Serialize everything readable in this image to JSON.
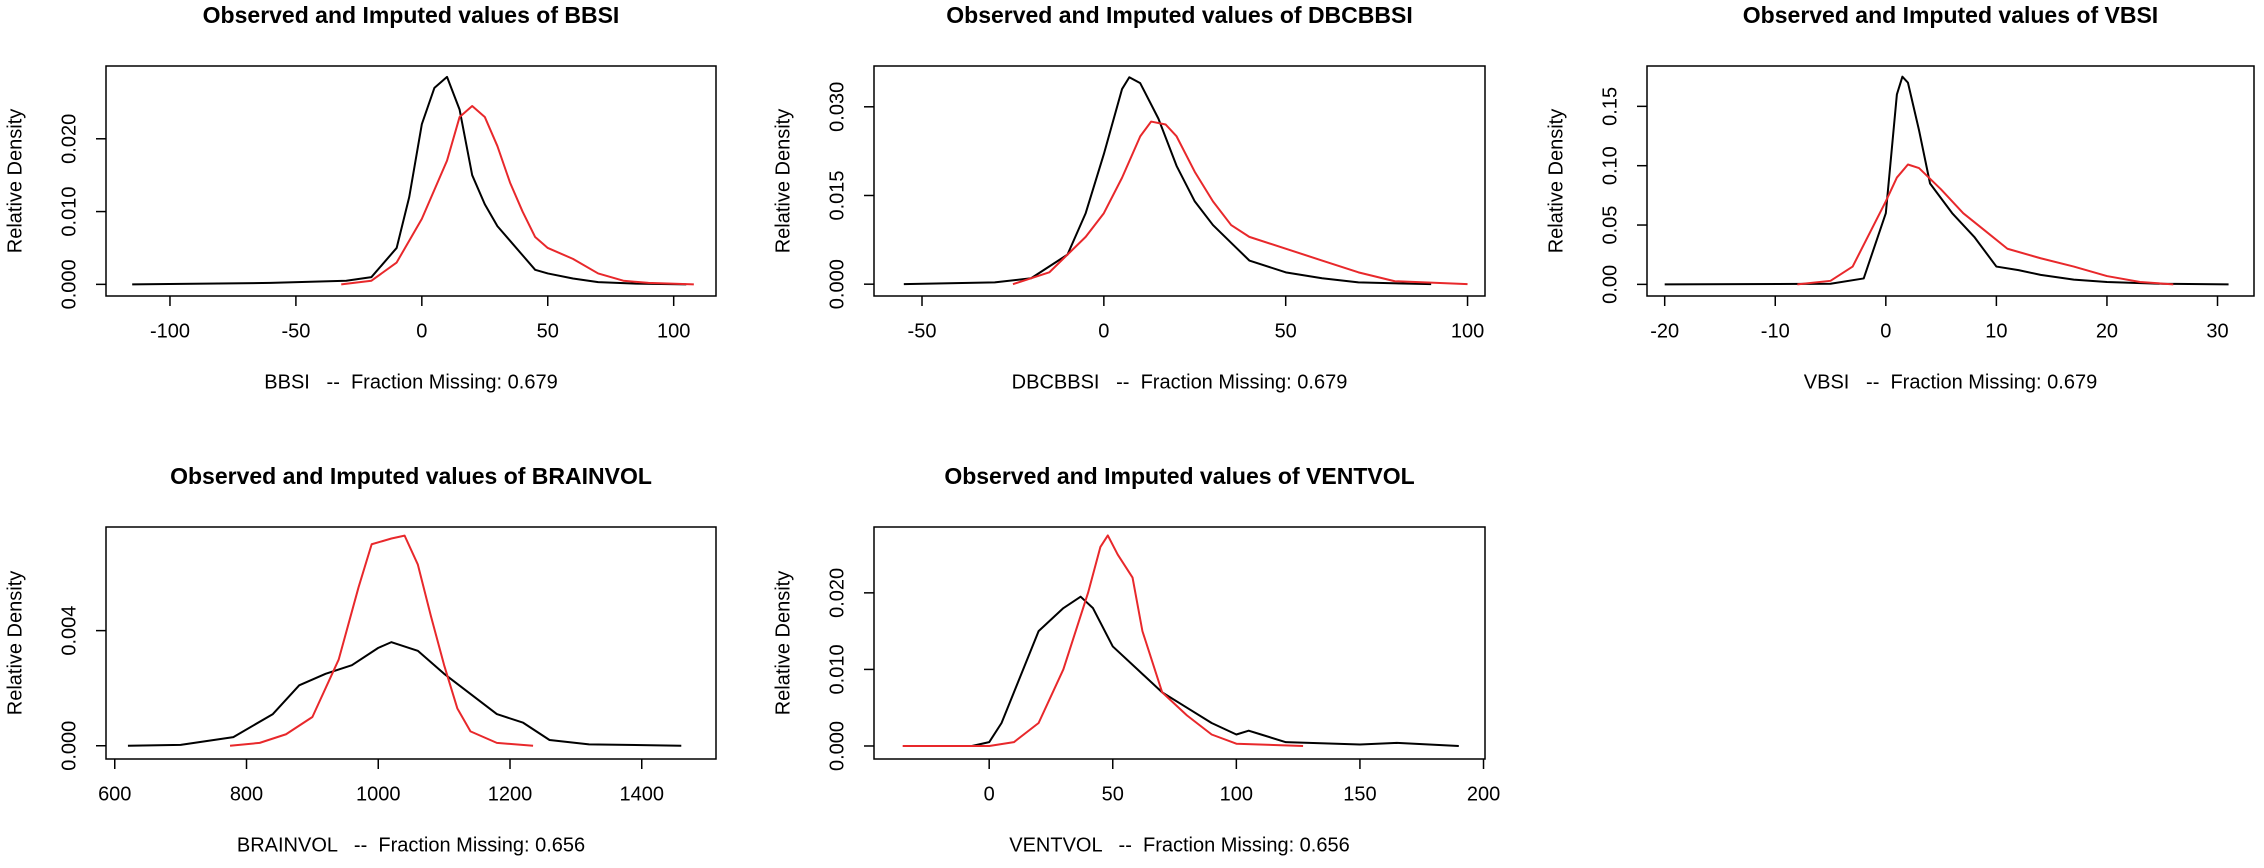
{
  "chart_data": [
    {
      "type": "line",
      "title": "Observed and Imputed values of BBSI",
      "xlabel": "BBSI   --  Fraction Missing: 0.679",
      "ylabel": "Relative Density",
      "xlim": [
        -125.4,
        116.8
      ],
      "ylim": [
        -0.0016,
        0.03
      ],
      "xticks": [
        -100,
        -50,
        0,
        50,
        100
      ],
      "yticks": [
        {
          "value": 0,
          "label": "0.000"
        },
        {
          "value": 0.01,
          "label": "0.010"
        },
        {
          "value": 0.02,
          "label": "0.020"
        }
      ],
      "series": [
        {
          "color": "#000000",
          "x": [
            -115,
            -60,
            -30,
            -20,
            -10,
            -5,
            0,
            5,
            10,
            15,
            20,
            25,
            30,
            35,
            40,
            45,
            50,
            60,
            70,
            85,
            105
          ],
          "values": [
            0,
            0.0002,
            0.0005,
            0.001,
            0.005,
            0.012,
            0.022,
            0.027,
            0.0285,
            0.024,
            0.015,
            0.011,
            0.008,
            0.006,
            0.004,
            0.002,
            0.0015,
            0.0008,
            0.0003,
            0.0001,
            0
          ]
        },
        {
          "color": "#e8282b",
          "x": [
            -32,
            -20,
            -10,
            0,
            10,
            15,
            20,
            25,
            30,
            35,
            40,
            45,
            50,
            60,
            70,
            80,
            90,
            108
          ],
          "values": [
            0,
            0.0005,
            0.003,
            0.009,
            0.017,
            0.023,
            0.0245,
            0.023,
            0.019,
            0.014,
            0.01,
            0.0065,
            0.005,
            0.0035,
            0.0015,
            0.0005,
            0.0002,
            0
          ]
        }
      ]
    },
    {
      "type": "line",
      "title": "Observed and Imputed values of DBCBBSI",
      "xlabel": "DBCBBSI   --  Fraction Missing: 0.679",
      "ylabel": "Relative Density",
      "xlim": [
        -63.2,
        104.8
      ],
      "ylim": [
        -0.002,
        0.0369
      ],
      "xticks": [
        -50,
        0,
        50,
        100
      ],
      "yticks": [
        {
          "value": 0,
          "label": "0.000"
        },
        0.015,
        {
          "value": 0.03,
          "label": "0.030"
        }
      ],
      "series": [
        {
          "color": "#000000",
          "x": [
            -55,
            -30,
            -20,
            -10,
            -5,
            0,
            5,
            7,
            10,
            15,
            20,
            25,
            30,
            35,
            40,
            50,
            60,
            70,
            90
          ],
          "values": [
            0,
            0.0003,
            0.001,
            0.005,
            0.012,
            0.022,
            0.033,
            0.035,
            0.034,
            0.028,
            0.02,
            0.014,
            0.01,
            0.007,
            0.004,
            0.002,
            0.001,
            0.0003,
            0
          ]
        },
        {
          "color": "#e8282b",
          "x": [
            -25,
            -15,
            -5,
            0,
            5,
            10,
            13,
            17,
            20,
            25,
            30,
            35,
            40,
            50,
            60,
            70,
            80,
            100
          ],
          "values": [
            0,
            0.002,
            0.008,
            0.012,
            0.018,
            0.025,
            0.0275,
            0.027,
            0.025,
            0.019,
            0.014,
            0.01,
            0.008,
            0.006,
            0.004,
            0.002,
            0.0005,
            0
          ]
        }
      ]
    },
    {
      "type": "line",
      "title": "Observed and Imputed values of VBSI",
      "xlabel": "VBSI   --  Fraction Missing: 0.679",
      "ylabel": "Relative Density",
      "xlim": [
        -21.6,
        33.3
      ],
      "ylim": [
        -0.0098,
        0.184
      ],
      "xticks": [
        -20,
        -10,
        0,
        10,
        20,
        30
      ],
      "yticks": [
        {
          "value": 0,
          "label": "0.00"
        },
        0.05,
        {
          "value": 0.1,
          "label": "0.10"
        },
        0.15
      ],
      "series": [
        {
          "color": "#000000",
          "x": [
            -20,
            -5,
            -2,
            0,
            1,
            1.5,
            2,
            3,
            4,
            6,
            8,
            10,
            12,
            14,
            17,
            20,
            25,
            31
          ],
          "values": [
            0,
            0.0005,
            0.005,
            0.06,
            0.16,
            0.175,
            0.17,
            0.13,
            0.085,
            0.06,
            0.04,
            0.015,
            0.012,
            0.008,
            0.004,
            0.002,
            0.0005,
            0
          ]
        },
        {
          "color": "#e8282b",
          "x": [
            -8,
            -5,
            -3,
            0,
            1,
            2,
            3,
            5,
            7,
            9,
            11,
            14,
            17,
            20,
            23,
            26
          ],
          "values": [
            0,
            0.003,
            0.015,
            0.07,
            0.09,
            0.101,
            0.098,
            0.08,
            0.06,
            0.045,
            0.03,
            0.022,
            0.015,
            0.007,
            0.002,
            0
          ]
        }
      ]
    },
    {
      "type": "line",
      "title": "Observed and Imputed values of BRAINVOL",
      "xlabel": "BRAINVOL   --  Fraction Missing: 0.656",
      "ylabel": "Relative Density",
      "xlim": [
        586.7,
        1512.7
      ],
      "ylim": [
        -0.00046,
        0.0076
      ],
      "xticks": [
        600,
        800,
        1000,
        1200,
        1400
      ],
      "yticks": [
        {
          "value": 0,
          "label": "0.000"
        },
        0.004
      ],
      "series": [
        {
          "color": "#000000",
          "x": [
            620,
            700,
            780,
            840,
            880,
            920,
            960,
            1000,
            1020,
            1060,
            1100,
            1140,
            1180,
            1220,
            1260,
            1320,
            1460
          ],
          "values": [
            0,
            3e-05,
            0.0003,
            0.0011,
            0.0021,
            0.0025,
            0.0028,
            0.0034,
            0.0036,
            0.0033,
            0.0025,
            0.0018,
            0.0011,
            0.0008,
            0.0002,
            5e-05,
            0
          ]
        },
        {
          "color": "#e8282b",
          "x": [
            775,
            820,
            860,
            900,
            940,
            970,
            990,
            1020,
            1040,
            1060,
            1080,
            1100,
            1120,
            1140,
            1180,
            1235
          ],
          "values": [
            0,
            0.0001,
            0.0004,
            0.001,
            0.003,
            0.0055,
            0.007,
            0.0072,
            0.0073,
            0.0063,
            0.0045,
            0.0028,
            0.0013,
            0.0005,
            0.0001,
            0
          ]
        }
      ]
    },
    {
      "type": "line",
      "title": "Observed and Imputed values of VENTVOL",
      "xlabel": "VENTVOL   --  Fraction Missing: 0.656",
      "ylabel": "Relative Density",
      "xlim": [
        -46.6,
        200.6
      ],
      "ylim": [
        -0.0017,
        0.0286
      ],
      "xticks": [
        0,
        50,
        100,
        150,
        200
      ],
      "yticks": [
        {
          "value": 0,
          "label": "0.000"
        },
        {
          "value": 0.01,
          "label": "0.010"
        },
        {
          "value": 0.02,
          "label": "0.020"
        }
      ],
      "series": [
        {
          "color": "#000000",
          "x": [
            -7,
            0,
            5,
            10,
            20,
            30,
            37,
            42,
            50,
            60,
            70,
            80,
            90,
            100,
            105,
            110,
            120,
            150,
            165,
            190
          ],
          "values": [
            0,
            0.0005,
            0.003,
            0.007,
            0.015,
            0.018,
            0.0195,
            0.018,
            0.013,
            0.01,
            0.007,
            0.005,
            0.003,
            0.0015,
            0.002,
            0.0015,
            0.0005,
            0.0002,
            0.0004,
            0
          ]
        },
        {
          "color": "#e8282b",
          "x": [
            -35,
            0,
            10,
            20,
            30,
            40,
            45,
            48,
            52,
            58,
            62,
            70,
            80,
            90,
            100,
            127
          ],
          "values": [
            0,
            0,
            0.0005,
            0.003,
            0.01,
            0.02,
            0.026,
            0.0275,
            0.025,
            0.022,
            0.015,
            0.007,
            0.004,
            0.0015,
            0.0003,
            0
          ]
        }
      ]
    }
  ]
}
